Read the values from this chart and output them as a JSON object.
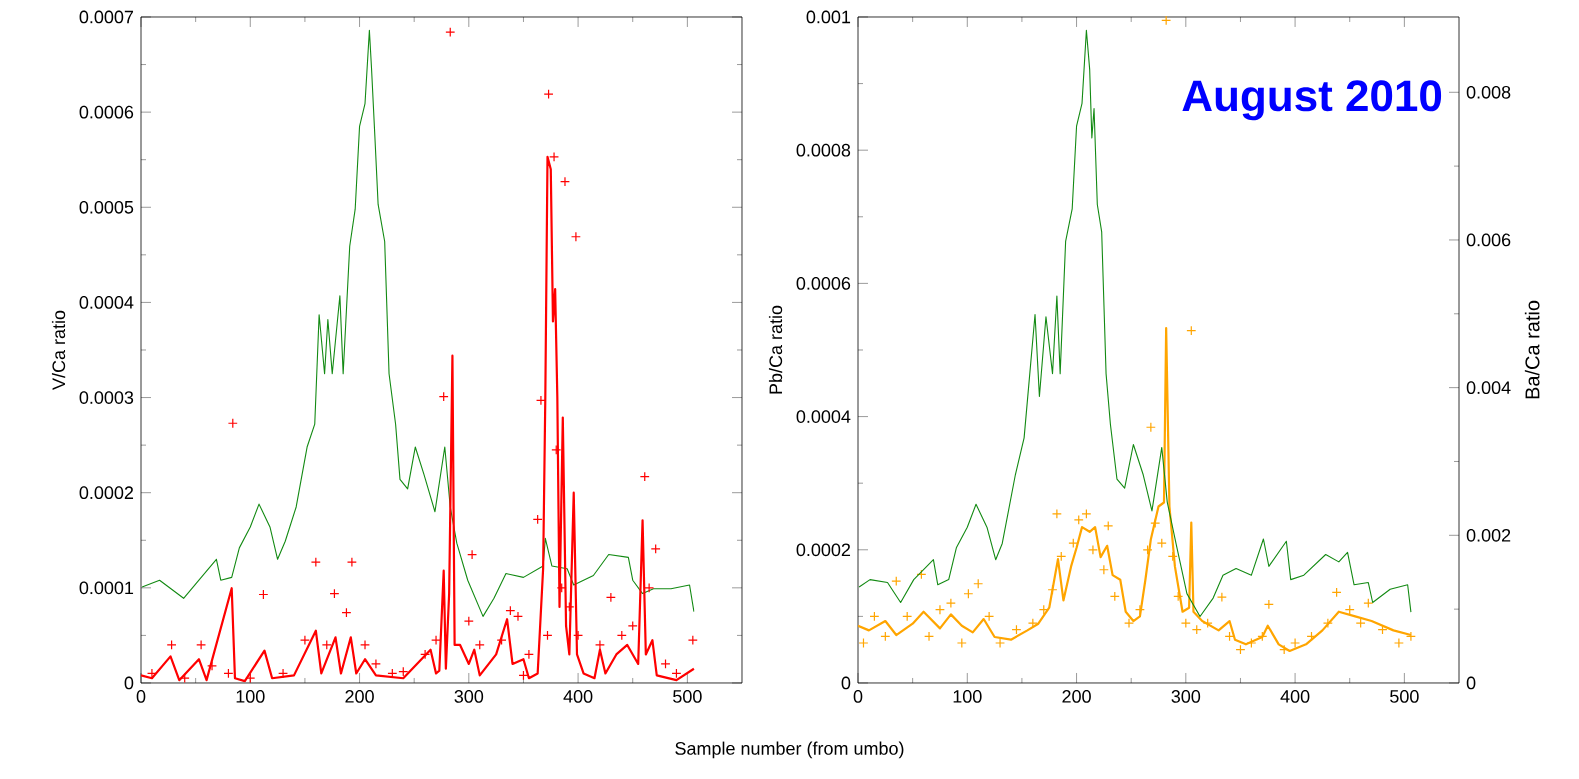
{
  "chart_data": [
    {
      "type": "line",
      "xlabel": "Sample number (from umbo)",
      "ylabel": "V/Ca ratio",
      "xlim": [
        0,
        550
      ],
      "xticks": [
        0,
        100,
        200,
        300,
        400,
        500
      ],
      "ylim": [
        0,
        0.0007
      ],
      "yticks": [
        0,
        0.0001,
        0.0002,
        0.0003,
        0.0004,
        0.0005,
        0.0006,
        0.0007
      ],
      "series": [
        {
          "type": "line",
          "color": "#138a13",
          "marker": "none",
          "x": [
            1,
            17,
            39,
            53,
            69,
            73,
            83,
            90,
            100,
            108,
            118,
            125,
            132,
            142,
            152,
            159,
            163,
            168,
            171,
            175,
            182,
            185,
            191,
            196,
            200,
            205,
            209,
            211,
            214,
            217,
            223,
            227,
            233,
            237,
            244,
            251,
            259,
            269,
            278,
            283,
            289,
            299,
            313,
            323,
            334,
            350,
            368,
            370,
            376,
            390,
            396,
            414,
            428,
            446,
            450,
            459,
            469,
            485,
            502,
            506
          ],
          "values": [
            0.000101,
            0.000108,
            8.9e-05,
            0.000108,
            0.00013,
            0.000108,
            0.000111,
            0.000142,
            0.000164,
            0.000188,
            0.000164,
            0.00013,
            0.000149,
            0.000185,
            0.000248,
            0.000272,
            0.000387,
            0.000325,
            0.000382,
            0.000325,
            0.000407,
            0.000325,
            0.000459,
            0.000498,
            0.000585,
            0.000609,
            0.000686,
            0.000645,
            0.000575,
            0.000503,
            0.000464,
            0.000325,
            0.000272,
            0.000214,
            0.000204,
            0.000248,
            0.000219,
            0.00018,
            0.000248,
            0.000185,
            0.000147,
            0.000108,
            7e-05,
            8.9e-05,
            0.000115,
            0.000111,
            0.000123,
            0.000152,
            0.000123,
            0.00012,
            0.000103,
            0.000113,
            0.000135,
            0.000132,
            0.000108,
            9.4e-05,
            9.9e-05,
            9.9e-05,
            0.000103,
            7.5e-05
          ]
        },
        {
          "type": "line",
          "color": "#ff0000",
          "marker": "none",
          "x": [
            0,
            10,
            27,
            35,
            53,
            60,
            83,
            86,
            95,
            113,
            120,
            140,
            160,
            165,
            178,
            183,
            192,
            197,
            205,
            215,
            240,
            265,
            270,
            273,
            277,
            279,
            282,
            285,
            287,
            292,
            300,
            305,
            310,
            325,
            335,
            340,
            350,
            355,
            363,
            368,
            370,
            372,
            375,
            377,
            379,
            381,
            383,
            386,
            389,
            392,
            396,
            399,
            405,
            415,
            420,
            425,
            435,
            445,
            455,
            459,
            462,
            468,
            472,
            490,
            506
          ],
          "values": [
            8e-06,
            5e-06,
            2.8e-05,
            3e-06,
            2.5e-05,
            3e-06,
            9.96e-05,
            5e-06,
            2e-06,
            3.4e-05,
            5e-06,
            8e-06,
            5.5e-05,
            1e-05,
            4.8e-05,
            1e-05,
            4.8e-05,
            1e-05,
            2.5e-05,
            8e-06,
            5e-06,
            3.5e-05,
            1e-05,
            1.3e-05,
            0.000118,
            1.5e-05,
            9.4e-05,
            0.000344,
            4e-05,
            4e-05,
            2e-05,
            3.5e-05,
            8e-06,
            3e-05,
            6.7e-05,
            2e-05,
            2.5e-05,
            5e-06,
            1e-05,
            0.00012,
            0.0003,
            0.000553,
            0.00054,
            0.00038,
            0.000414,
            0.0003,
            8e-05,
            0.000279,
            6e-05,
            3e-05,
            0.0002,
            3e-05,
            1e-05,
            5e-06,
            3.5e-05,
            1e-05,
            3e-05,
            4e-05,
            2e-05,
            0.000171,
            3e-05,
            4.5e-05,
            8e-06,
            3e-06,
            1.5e-05
          ]
        },
        {
          "type": "scatter",
          "color": "#ff0000",
          "marker": "cross",
          "x": [
            84,
            283,
            373,
            378,
            388,
            398,
            277,
            160,
            193,
            112,
            177,
            188,
            303,
            461,
            471,
            366,
            363,
            380,
            270,
            338,
            345,
            505,
            28,
            55,
            65,
            80,
            150,
            170,
            205,
            215,
            240,
            260,
            300,
            310,
            330,
            355,
            372,
            385,
            392,
            400,
            420,
            430,
            440,
            450,
            465,
            480,
            490,
            10,
            40,
            100,
            130,
            230,
            350
          ],
          "values": [
            0.000273,
            0.000684,
            0.000619,
            0.000553,
            0.000527,
            0.000469,
            0.000301,
            0.000127,
            0.000127,
            9.3e-05,
            9.4e-05,
            7.4e-05,
            0.000135,
            0.000217,
            0.000141,
            0.000297,
            0.000172,
            0.000245,
            4.5e-05,
            7.6e-05,
            7e-05,
            4.5e-05,
            4e-05,
            4e-05,
            1.8e-05,
            1e-05,
            4.5e-05,
            4e-05,
            4e-05,
            2e-05,
            1.2e-05,
            3e-05,
            6.5e-05,
            4e-05,
            4.5e-05,
            3e-05,
            5e-05,
            0.0001,
            8e-05,
            5e-05,
            4e-05,
            9e-05,
            5e-05,
            6e-05,
            0.0001,
            2e-05,
            1e-05,
            1e-05,
            5e-06,
            5e-06,
            1e-05,
            1e-05,
            8e-06
          ]
        }
      ]
    },
    {
      "type": "line",
      "ylabel": "Pb/Ca ratio",
      "y2label": "Ba/Ca ratio",
      "annotations": [
        "August 2010"
      ],
      "xlim": [
        0,
        550
      ],
      "xticks": [
        0,
        100,
        200,
        300,
        400,
        500
      ],
      "ylim": [
        0,
        0.001
      ],
      "yticks": [
        0,
        0.0002,
        0.0004,
        0.0006,
        0.0008,
        0.001
      ],
      "y2lim": [
        0,
        0.00902
      ],
      "y2ticks": [
        0,
        0.002,
        0.004,
        0.006,
        0.008
      ],
      "series": [
        {
          "type": "line",
          "axis": "y2",
          "color": "#138a13",
          "marker": "none",
          "x": [
            1,
            11,
            27,
            39,
            51,
            69,
            73,
            83,
            90,
            100,
            108,
            118,
            126,
            132,
            144,
            152,
            162,
            166,
            172,
            178,
            182,
            185,
            190,
            196,
            200,
            205,
            209,
            212,
            214,
            216,
            219,
            223,
            227,
            231,
            237,
            244,
            252,
            261,
            269,
            278,
            283,
            291,
            301,
            313,
            325,
            334,
            346,
            360,
            371,
            376,
            392,
            396,
            408,
            428,
            440,
            448,
            454,
            467,
            471,
            487,
            503,
            506
          ],
          "values": [
            0.0013,
            0.0014,
            0.00136,
            0.00109,
            0.0014,
            0.00167,
            0.00133,
            0.0014,
            0.00183,
            0.00211,
            0.00242,
            0.00211,
            0.00167,
            0.00189,
            0.00282,
            0.00332,
            0.00499,
            0.00388,
            0.00496,
            0.00419,
            0.00524,
            0.00419,
            0.00598,
            0.00642,
            0.00754,
            0.00785,
            0.00884,
            0.00831,
            0.00738,
            0.00778,
            0.00648,
            0.00611,
            0.00419,
            0.0035,
            0.00276,
            0.00264,
            0.00323,
            0.00282,
            0.00233,
            0.00319,
            0.00245,
            0.00189,
            0.00121,
            0.0009,
            0.00115,
            0.00146,
            0.00155,
            0.00146,
            0.00195,
            0.00158,
            0.00192,
            0.0014,
            0.00146,
            0.00174,
            0.00164,
            0.00177,
            0.00133,
            0.00136,
            0.00109,
            0.00127,
            0.00133,
            0.00096
          ]
        },
        {
          "type": "line",
          "color": "#ffa500",
          "marker": "none",
          "x": [
            0,
            10,
            25,
            35,
            50,
            60,
            75,
            85,
            95,
            105,
            115,
            125,
            140,
            155,
            165,
            175,
            183,
            188,
            195,
            200,
            205,
            212,
            217,
            222,
            228,
            233,
            240,
            245,
            252,
            258,
            263,
            268,
            275,
            280,
            282,
            285,
            290,
            297,
            303,
            305,
            307,
            315,
            330,
            340,
            345,
            355,
            370,
            375,
            385,
            395,
            410,
            425,
            440,
            455,
            470,
            490,
            506
          ],
          "values": [
            8.6e-05,
            7.9e-05,
            9.3e-05,
            7.2e-05,
            8.9e-05,
            0.000107,
            8.2e-05,
            0.000103,
            8.6e-05,
            7.6e-05,
            9.6e-05,
            6.9e-05,
            6.5e-05,
            7.9e-05,
            8.9e-05,
            0.000113,
            0.000186,
            0.000124,
            0.000175,
            0.000203,
            0.000234,
            0.000227,
            0.000234,
            0.000189,
            0.000206,
            0.000162,
            0.000155,
            0.000107,
            9.3e-05,
            0.0001,
            0.000155,
            0.000216,
            0.000265,
            0.000271,
            0.000533,
            0.000265,
            0.000175,
            0.000107,
            0.000113,
            0.000241,
            0.000107,
            9.3e-05,
            7.9e-05,
            9.3e-05,
            6.5e-05,
            5.8e-05,
            6.9e-05,
            8.6e-05,
            5.8e-05,
            4.8e-05,
            5.8e-05,
            7.9e-05,
            0.000107,
            0.0001,
            9.3e-05,
            7.9e-05,
            7.2e-05
          ]
        },
        {
          "type": "scatter",
          "color": "#ffa500",
          "marker": "cross",
          "x": [
            282,
            305,
            268,
            182,
            202,
            209,
            229,
            110,
            35,
            58,
            101,
            376,
            333,
            438,
            467,
            5,
            15,
            25,
            45,
            65,
            75,
            85,
            95,
            120,
            130,
            145,
            160,
            170,
            178,
            186,
            197,
            215,
            225,
            235,
            248,
            258,
            265,
            272,
            278,
            288,
            293,
            300,
            310,
            320,
            340,
            350,
            360,
            370,
            390,
            400,
            415,
            430,
            450,
            460,
            480,
            495,
            506
          ],
          "values": [
            0.000995,
            0.000529,
            0.000384,
            0.000254,
            0.000245,
            0.000254,
            0.000236,
            0.000149,
            0.000153,
            0.000163,
            0.000134,
            0.000118,
            0.000129,
            0.000136,
            0.00012,
            6e-05,
            0.0001,
            7e-05,
            0.0001,
            7e-05,
            0.00011,
            0.00012,
            6e-05,
            0.0001,
            6e-05,
            8e-05,
            9e-05,
            0.00011,
            0.00014,
            0.00019,
            0.00021,
            0.0002,
            0.00017,
            0.00013,
            9e-05,
            0.00011,
            0.0002,
            0.00024,
            0.00021,
            0.00019,
            0.00013,
            9e-05,
            8e-05,
            9e-05,
            7e-05,
            5e-05,
            6e-05,
            7e-05,
            5e-05,
            6e-05,
            7e-05,
            9e-05,
            0.00011,
            9e-05,
            8e-05,
            6e-05,
            7e-05
          ]
        }
      ]
    }
  ]
}
